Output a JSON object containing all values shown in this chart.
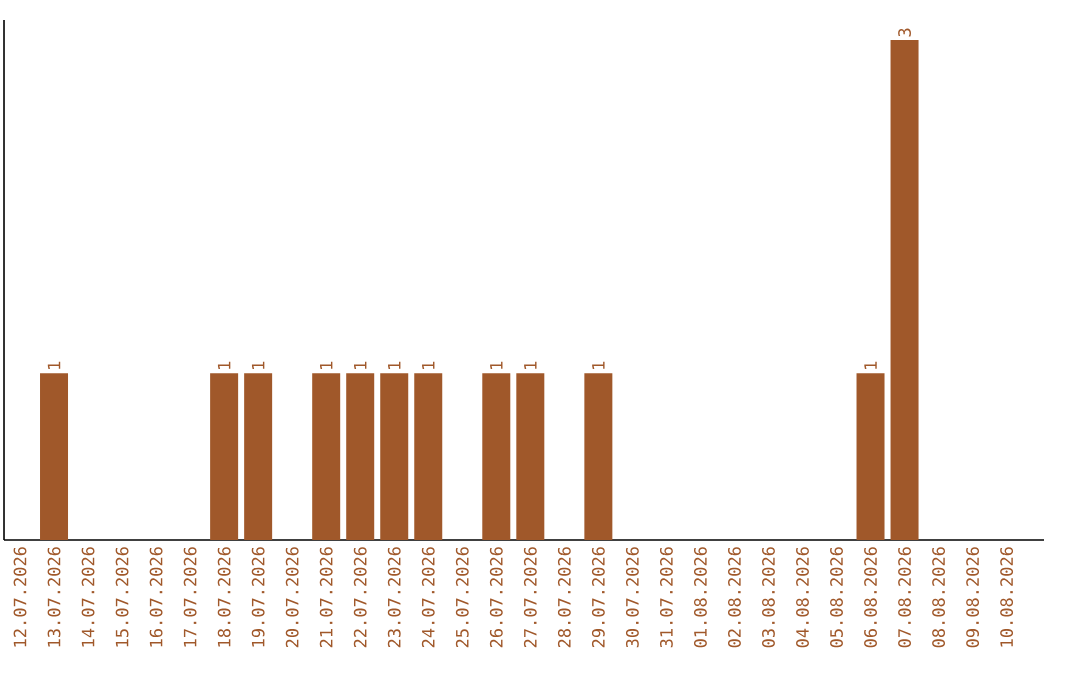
{
  "chart_data": {
    "type": "bar",
    "categories": [
      "12.07.2026",
      "13.07.2026",
      "14.07.2026",
      "15.07.2026",
      "16.07.2026",
      "17.07.2026",
      "18.07.2026",
      "19.07.2026",
      "20.07.2026",
      "21.07.2026",
      "22.07.2026",
      "23.07.2026",
      "24.07.2026",
      "25.07.2026",
      "26.07.2026",
      "27.07.2026",
      "28.07.2026",
      "29.07.2026",
      "30.07.2026",
      "31.07.2026",
      "01.08.2026",
      "02.08.2026",
      "03.08.2026",
      "04.08.2026",
      "05.08.2026",
      "06.08.2026",
      "07.08.2026",
      "08.08.2026",
      "09.08.2026",
      "10.08.2026"
    ],
    "values": [
      0,
      1,
      0,
      0,
      0,
      0,
      1,
      1,
      0,
      1,
      1,
      1,
      1,
      0,
      1,
      1,
      0,
      1,
      0,
      0,
      0,
      0,
      0,
      0,
      0,
      1,
      3,
      0,
      0,
      0
    ],
    "value_labels": [
      null,
      "1",
      null,
      null,
      null,
      null,
      "1",
      "1",
      null,
      "1",
      "1",
      "1",
      "1",
      null,
      "1",
      "1",
      null,
      "1",
      null,
      null,
      null,
      null,
      null,
      null,
      null,
      "1",
      "3",
      null,
      null,
      null
    ],
    "color": "#a0582a",
    "tick_labels": "x"
  }
}
